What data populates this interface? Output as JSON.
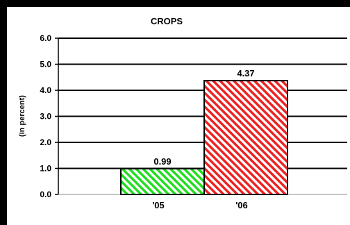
{
  "chart_data": {
    "type": "bar",
    "title": "CROPS",
    "ylabel": "(in percent)",
    "xlabel": "",
    "categories": [
      "'05",
      "'06"
    ],
    "values": [
      0.99,
      4.37
    ],
    "data_labels": [
      "0.99",
      "4.37"
    ],
    "ylim": [
      0,
      6
    ],
    "yticks": [
      0,
      1,
      2,
      3,
      4,
      5,
      6
    ],
    "ytick_labels": [
      "0.0",
      "1.0",
      "2.0",
      "3.0",
      "4.0",
      "5.0",
      "6.0"
    ],
    "grid": true,
    "legend": "none",
    "bar_colors": [
      "#22dd22",
      "#ee2222"
    ],
    "bar_pattern": "diagonal-hatch",
    "frame_color": "#000000"
  }
}
